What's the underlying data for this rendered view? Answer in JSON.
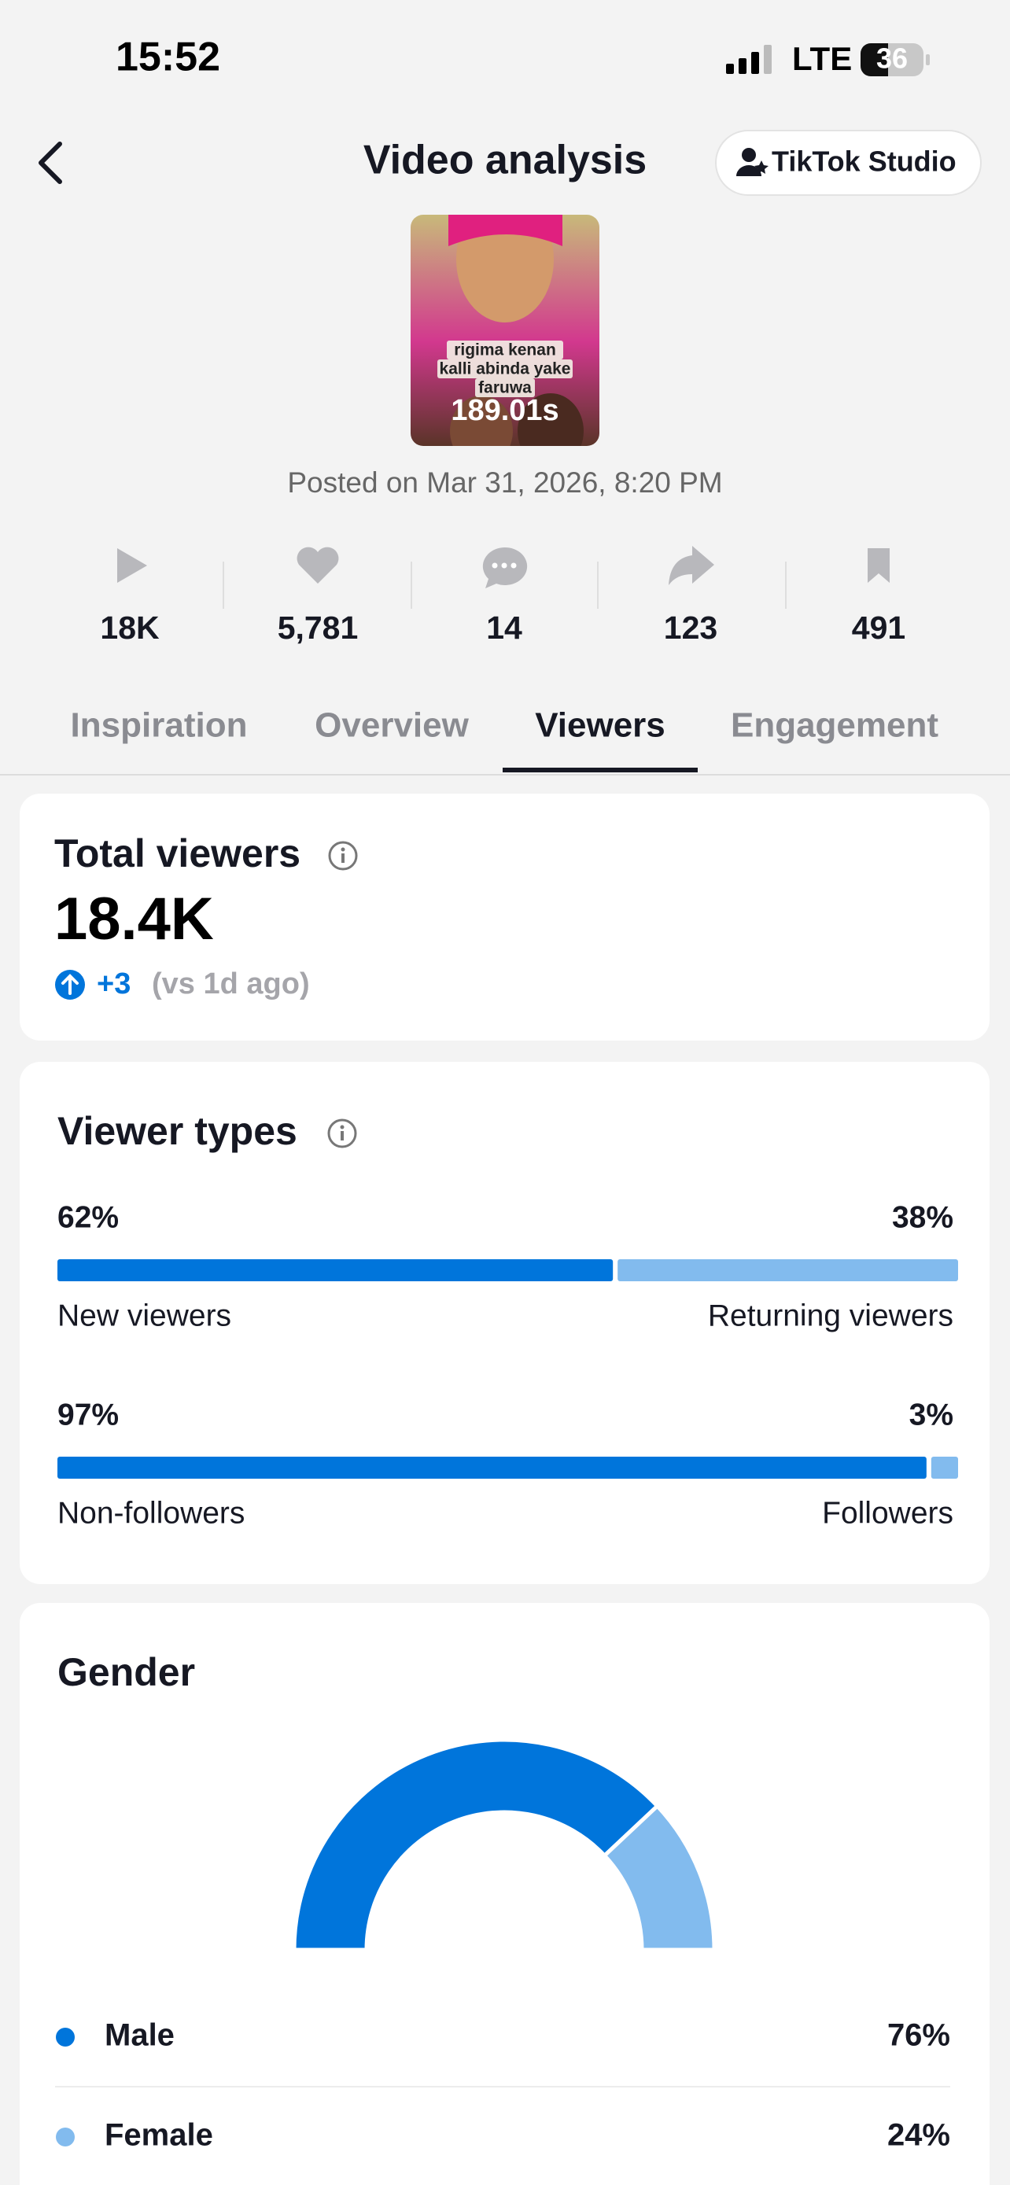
{
  "status_bar": {
    "time": "15:52",
    "network": "LTE",
    "battery": "36"
  },
  "header": {
    "title": "Video analysis",
    "studio_button": "TikTok Studio"
  },
  "video": {
    "caption_lines": [
      "rigima kenan",
      "kalli abinda yake",
      "faruwa"
    ],
    "duration": "189.01s",
    "posted": "Posted on Mar 31, 2026, 8:20 PM"
  },
  "stats": [
    "18K",
    "5,781",
    "14",
    "123",
    "491"
  ],
  "tabs": {
    "items": [
      "Inspiration",
      "Overview",
      "Viewers",
      "Engagement"
    ],
    "active": 2
  },
  "total_viewers": {
    "title": "Total viewers",
    "value": "18.4K",
    "change": "+3",
    "comparison": "(vs 1d ago)"
  },
  "viewer_types": {
    "title": "Viewer types",
    "bars": [
      {
        "segments": [
          {
            "name": "New viewers",
            "value": 62,
            "label": "62%",
            "color": "#0075db"
          },
          {
            "name": "Returning viewers",
            "value": 38,
            "label": "38%",
            "color": "#82bbee"
          }
        ]
      },
      {
        "segments": [
          {
            "name": "Non-followers",
            "value": 97,
            "label": "97%",
            "color": "#0075db"
          },
          {
            "name": "Followers",
            "value": 3,
            "label": "3%",
            "color": "#82bbee"
          }
        ]
      }
    ]
  },
  "gender": {
    "title": "Gender",
    "segments": [
      {
        "name": "Male",
        "value": 76,
        "label": "76%",
        "color": "#0075db"
      },
      {
        "name": "Female",
        "value": 24,
        "label": "24%",
        "color": "#82bbee"
      }
    ]
  }
}
